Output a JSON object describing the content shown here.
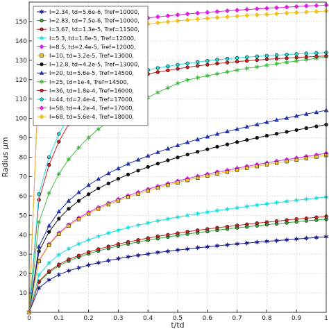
{
  "chart_data": {
    "type": "line",
    "title": "",
    "xlabel": "t/td",
    "ylabel": "Radius μm",
    "xlim": [
      0,
      1
    ],
    "ylim": [
      0,
      160
    ],
    "grid": true,
    "legend_position": "top-left",
    "x_ticks": [
      "0",
      "0.1",
      "0.2",
      "0.3",
      "0.4",
      "0.5",
      "0.6",
      "0.7",
      "0.8",
      "0.9",
      "1"
    ],
    "y_ticks": [
      "10",
      "20",
      "30",
      "40",
      "50",
      "60",
      "70",
      "80",
      "90",
      "100",
      "110",
      "120",
      "130",
      "140",
      "150"
    ],
    "x": [
      0,
      0.033,
      0.067,
      0.1,
      0.133,
      0.167,
      0.2,
      0.233,
      0.267,
      0.3,
      0.333,
      0.367,
      0.4,
      0.433,
      0.467,
      0.5,
      0.533,
      0.567,
      0.6,
      0.633,
      0.667,
      0.7,
      0.733,
      0.767,
      0.8,
      0.833,
      0.867,
      0.9,
      0.933,
      0.967,
      1.0
    ],
    "series": [
      {
        "name": "I=2.34, td=5.6e-6, Tref=10000,",
        "color": "#1c1c8c",
        "marker": "star",
        "values": [
          0,
          12.6,
          16.7,
          19.4,
          21.4,
          23.0,
          24.4,
          25.6,
          26.7,
          27.7,
          28.6,
          29.4,
          30.1,
          30.9,
          31.5,
          32.1,
          32.7,
          33.3,
          33.8,
          34.3,
          34.8,
          35.3,
          35.7,
          36.2,
          36.6,
          37.0,
          37.4,
          37.8,
          38.2,
          38.6,
          39.0
        ]
      },
      {
        "name": "I=2.83, td=7.5e-6, Tref=10000,",
        "color": "#33aa33",
        "marker": "circle",
        "values": [
          0,
          15.6,
          20.6,
          24.0,
          26.5,
          28.5,
          30.2,
          31.7,
          33.0,
          34.2,
          35.3,
          36.3,
          37.2,
          38.1,
          38.9,
          39.7,
          40.4,
          41.1,
          41.7,
          42.4,
          43.0,
          43.6,
          44.1,
          44.7,
          45.2,
          45.7,
          46.2,
          46.7,
          47.2,
          47.6,
          48.0
        ]
      },
      {
        "name": "I=3.67, td=1.3e-5, Tref=11500,",
        "color": "#cc2222",
        "marker": "circle",
        "values": [
          0,
          16.0,
          21.2,
          24.7,
          27.3,
          29.3,
          31.1,
          32.6,
          34.0,
          35.2,
          36.3,
          37.3,
          38.3,
          39.2,
          40.0,
          40.8,
          41.6,
          42.3,
          43.0,
          43.6,
          44.2,
          44.8,
          45.4,
          46.0,
          46.5,
          47.0,
          47.6,
          48.1,
          48.5,
          49.0,
          49.5
        ]
      },
      {
        "name": "I=5.3, td=1.8e-5, Tref=12000,",
        "color": "#22dddd",
        "marker": "star",
        "values": [
          0,
          19.3,
          25.5,
          29.7,
          32.8,
          35.3,
          37.4,
          39.2,
          40.9,
          42.3,
          43.7,
          44.9,
          46.1,
          47.2,
          48.2,
          49.1,
          50.0,
          50.9,
          51.7,
          52.5,
          53.2,
          53.9,
          54.6,
          55.3,
          55.9,
          56.6,
          57.2,
          57.8,
          58.4,
          58.9,
          59.5
        ]
      },
      {
        "name": "I=8.5, td=2.4e-5, Tref=12000,",
        "color": "#dd22dd",
        "marker": "diamond",
        "values": [
          0,
          26.6,
          35.1,
          40.9,
          45.2,
          48.7,
          51.5,
          54.1,
          56.3,
          58.3,
          60.2,
          61.9,
          63.5,
          65.0,
          66.4,
          67.7,
          69.0,
          70.2,
          71.3,
          72.4,
          73.3,
          74.3,
          75.3,
          76.2,
          77.1,
          78.0,
          78.8,
          79.6,
          80.4,
          81.2,
          82.0
        ]
      },
      {
        "name": "I=10, td=3.2e-5, Tref=13000,",
        "color": "#f0c020",
        "marker": "square",
        "values": [
          0,
          26.3,
          34.7,
          40.4,
          44.6,
          48.0,
          50.9,
          53.4,
          55.6,
          57.6,
          59.4,
          61.1,
          62.7,
          64.2,
          65.6,
          66.9,
          68.1,
          69.3,
          70.4,
          71.5,
          72.4,
          73.4,
          74.4,
          75.3,
          76.2,
          77.0,
          77.8,
          78.6,
          79.4,
          80.2,
          81.0
        ]
      },
      {
        "name": "I=12.8, td=4.2e-5, Tref=13000,",
        "color": "#111111",
        "marker": "circle",
        "values": [
          0,
          31.5,
          41.5,
          48.3,
          53.4,
          57.5,
          60.9,
          63.9,
          66.5,
          68.9,
          71.1,
          73.1,
          75.0,
          76.7,
          78.4,
          79.9,
          81.4,
          82.8,
          84.1,
          85.4,
          86.6,
          87.8,
          88.9,
          90.0,
          91.1,
          92.1,
          93.1,
          94.0,
          95.0,
          95.9,
          96.8
        ]
      },
      {
        "name": "I=20, td=5.6e-5, Tref=14500,",
        "color": "#2233aa",
        "marker": "triangle",
        "values": [
          0,
          33.9,
          44.7,
          52.0,
          57.5,
          61.9,
          65.6,
          68.8,
          71.7,
          74.2,
          76.6,
          78.7,
          80.7,
          82.6,
          84.4,
          86.1,
          87.7,
          89.2,
          90.6,
          92.0,
          93.3,
          94.5,
          95.7,
          96.9,
          98.1,
          99.2,
          100.2,
          101.3,
          102.3,
          103.2,
          104.2
        ]
      },
      {
        "name": "I=25, td=1e-4, Tref=14500,",
        "color": "#44bb44",
        "marker": "star",
        "values": [
          0,
          46.5,
          61.4,
          71.4,
          78.9,
          85.0,
          90.1,
          94.5,
          98.4,
          101.9,
          105.1,
          108.1,
          110.8,
          113.4,
          115.8,
          118.1,
          119.8,
          121.0,
          122.0,
          123.0,
          124.0,
          124.9,
          125.8,
          126.6,
          127.4,
          128.2,
          128.9,
          129.6,
          130.3,
          131.0,
          131.8
        ]
      },
      {
        "name": "I=36, td=1.8e-4, Tref=16000,",
        "color": "#cc2222",
        "marker": "circle",
        "values": [
          0,
          58.0,
          76.0,
          88.0,
          97.0,
          104.0,
          110.0,
          115.0,
          117.2,
          119.0,
          120.5,
          121.8,
          122.9,
          123.9,
          124.8,
          125.6,
          126.4,
          127.1,
          127.7,
          128.3,
          128.8,
          129.3,
          129.7,
          130.1,
          130.5,
          130.8,
          131.1,
          131.4,
          131.7,
          132.0,
          132.2
        ]
      },
      {
        "name": "I=44, td=2.4e-4, Tref=17000,",
        "color": "#22dddd",
        "marker": "circle",
        "values": [
          0,
          61.0,
          80.0,
          92.0,
          101.0,
          108.0,
          113.5,
          117.0,
          119.3,
          121.1,
          122.6,
          123.9,
          125.0,
          126.0,
          126.9,
          127.7,
          128.4,
          129.1,
          129.7,
          130.3,
          130.8,
          131.2,
          131.6,
          132.0,
          132.3,
          132.6,
          132.9,
          133.2,
          133.5,
          133.7,
          134.0
        ]
      },
      {
        "name": "I=58, td=4.2e-4, Tref=17000,",
        "color": "#dd22dd",
        "marker": "diamond",
        "values": [
          0,
          125.0,
          135.0,
          139.5,
          142.5,
          144.7,
          146.3,
          147.6,
          148.7,
          149.6,
          150.4,
          151.1,
          151.8,
          152.4,
          152.9,
          153.4,
          153.9,
          154.3,
          154.7,
          155.1,
          155.5,
          155.8,
          156.2,
          156.5,
          156.8,
          157.1,
          157.4,
          157.7,
          158.0,
          158.2,
          158.5
        ]
      },
      {
        "name": "I=68, td=5.6e-4, Tref=18000,",
        "color": "#f0c020",
        "marker": "diamond",
        "values": [
          0,
          123.0,
          132.0,
          136.5,
          139.5,
          141.6,
          143.2,
          144.5,
          145.6,
          146.5,
          147.3,
          148.0,
          148.7,
          149.3,
          149.8,
          150.3,
          150.8,
          151.2,
          151.6,
          152.0,
          152.4,
          152.7,
          153.1,
          153.4,
          153.7,
          154.0,
          154.3,
          154.6,
          154.9,
          155.1,
          155.4
        ]
      }
    ]
  }
}
